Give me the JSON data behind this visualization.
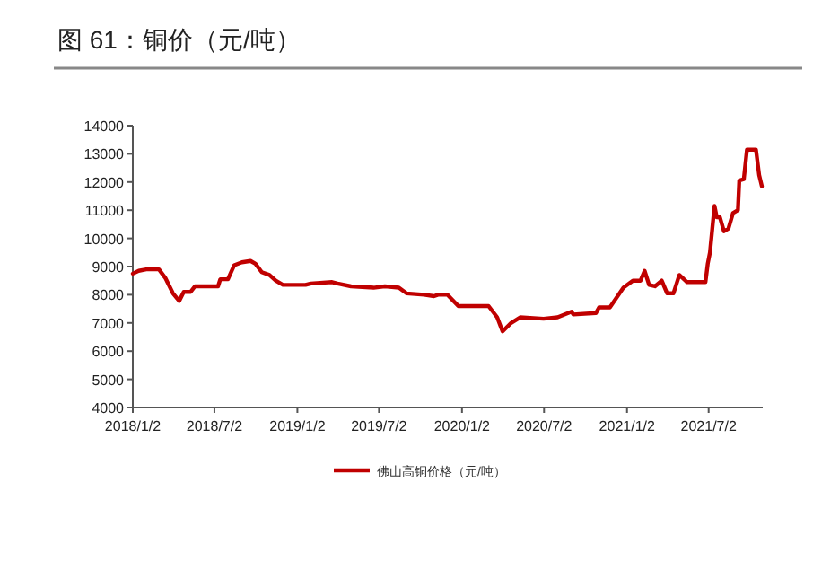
{
  "chart_data": {
    "type": "line",
    "title": "图 61：铜价（元/吨）",
    "x": [
      "2018-01-02",
      "2018-01-15",
      "2018-02-01",
      "2018-03-01",
      "2018-03-15",
      "2018-04-01",
      "2018-04-15",
      "2018-04-25",
      "2018-05-10",
      "2018-05-20",
      "2018-07-10",
      "2018-07-15",
      "2018-08-01",
      "2018-08-15",
      "2018-09-01",
      "2018-09-20",
      "2018-10-01",
      "2018-10-15",
      "2018-11-01",
      "2018-11-15",
      "2018-12-01",
      "2019-01-20",
      "2019-02-01",
      "2019-03-20",
      "2019-04-01",
      "2019-05-01",
      "2019-06-20",
      "2019-07-15",
      "2019-08-15",
      "2019-09-01",
      "2019-10-10",
      "2019-11-01",
      "2019-11-10",
      "2019-12-01",
      "2019-12-25",
      "2020-03-01",
      "2020-03-20",
      "2020-04-01",
      "2020-04-20",
      "2020-05-10",
      "2020-07-01",
      "2020-08-01",
      "2020-09-01",
      "2020-09-05",
      "2020-10-25",
      "2020-11-01",
      "2020-11-25",
      "2020-12-25",
      "2021-01-15",
      "2021-02-01",
      "2021-02-10",
      "2021-02-20",
      "2021-03-05",
      "2021-03-20",
      "2021-04-01",
      "2021-04-15",
      "2021-04-28",
      "2021-05-15",
      "2021-06-25",
      "2021-06-30",
      "2021-07-05",
      "2021-07-15",
      "2021-07-20",
      "2021-07-27",
      "2021-08-05",
      "2021-08-15",
      "2021-08-25",
      "2021-09-05",
      "2021-09-08",
      "2021-09-18",
      "2021-09-25",
      "2021-10-15",
      "2021-10-22",
      "2021-10-28"
    ],
    "series": [
      {
        "name": "佛山高铜价格（元/吨）",
        "color": "#c00000",
        "values": [
          8750,
          8850,
          8900,
          8900,
          8600,
          8050,
          7780,
          8100,
          8100,
          8300,
          8300,
          8550,
          8550,
          9050,
          9150,
          9200,
          9100,
          8800,
          8700,
          8500,
          8350,
          8350,
          8400,
          8450,
          8400,
          8300,
          8250,
          8300,
          8250,
          8050,
          8000,
          7950,
          8000,
          8000,
          7600,
          7600,
          7200,
          6700,
          7000,
          7200,
          7150,
          7200,
          7400,
          7300,
          7350,
          7550,
          7550,
          8250,
          8500,
          8500,
          8850,
          8350,
          8300,
          8500,
          8050,
          8050,
          8700,
          8450,
          8450,
          9100,
          9500,
          11150,
          10750,
          10750,
          10250,
          10350,
          10900,
          11000,
          12050,
          12100,
          13150,
          13150,
          12250,
          11850
        ]
      }
    ],
    "xlim": [
      "2018-01-02",
      "2021-10-30"
    ],
    "xticks": [
      {
        "value": "2018-01-02",
        "label": "2018/1/2"
      },
      {
        "value": "2018-07-02",
        "label": "2018/7/2"
      },
      {
        "value": "2019-01-02",
        "label": "2019/1/2"
      },
      {
        "value": "2019-07-02",
        "label": "2019/7/2"
      },
      {
        "value": "2020-01-02",
        "label": "2020/1/2"
      },
      {
        "value": "2020-07-02",
        "label": "2020/7/2"
      },
      {
        "value": "2021-01-02",
        "label": "2021/1/2"
      },
      {
        "value": "2021-07-02",
        "label": "2021/7/2"
      }
    ],
    "ylim": [
      4000,
      14000
    ],
    "yticks": [
      4000,
      5000,
      6000,
      7000,
      8000,
      9000,
      10000,
      11000,
      12000,
      13000,
      14000
    ],
    "legend": "bottom"
  }
}
